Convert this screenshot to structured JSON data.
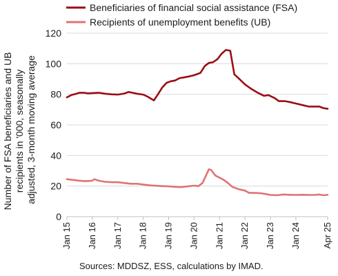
{
  "chart_data": {
    "type": "line",
    "title": "",
    "ylabel_lines": [
      "Number of FSA beneficiaries and UB",
      "recipients in '000, seasonally",
      "adjusted, 3-month moving average"
    ],
    "xlabel": "",
    "ylim": [
      0,
      120
    ],
    "y_ticks": [
      0,
      20,
      40,
      60,
      80,
      100,
      120
    ],
    "x_ticks": [
      {
        "label": "Jan 15",
        "t": 2015.0
      },
      {
        "label": "Jan 16",
        "t": 2016.0
      },
      {
        "label": "Jan 17",
        "t": 2017.0
      },
      {
        "label": "Jan 18",
        "t": 2018.0
      },
      {
        "label": "Jan 19",
        "t": 2019.0
      },
      {
        "label": "Jan 20",
        "t": 2020.0
      },
      {
        "label": "Jan 21",
        "t": 2021.0
      },
      {
        "label": "Jan 22",
        "t": 2022.0
      },
      {
        "label": "Jan 23",
        "t": 2023.0
      },
      {
        "label": "Jan 24",
        "t": 2024.0
      },
      {
        "label": "Apr 25",
        "t": 2025.25
      }
    ],
    "xlim": [
      2015.0,
      2025.25
    ],
    "grid": "horizontal",
    "legend_position": "top",
    "source": "Sources: MDDSZ, ESS, calculations by IMAD.",
    "series": [
      {
        "name": "Beneficiaries of financial social assistance (FSA)",
        "color": "#9b0d14",
        "points": [
          [
            2015.0,
            78
          ],
          [
            2015.17,
            79.5
          ],
          [
            2015.33,
            80.2
          ],
          [
            2015.5,
            81
          ],
          [
            2015.67,
            81
          ],
          [
            2015.83,
            80.6
          ],
          [
            2016.0,
            80.8
          ],
          [
            2016.25,
            81
          ],
          [
            2016.5,
            80.4
          ],
          [
            2016.75,
            80
          ],
          [
            2017.0,
            79.8
          ],
          [
            2017.25,
            80.5
          ],
          [
            2017.42,
            81.5
          ],
          [
            2017.58,
            81
          ],
          [
            2017.75,
            80.4
          ],
          [
            2018.0,
            79.8
          ],
          [
            2018.17,
            78.5
          ],
          [
            2018.42,
            76
          ],
          [
            2018.58,
            80
          ],
          [
            2018.75,
            84.5
          ],
          [
            2018.92,
            87.5
          ],
          [
            2019.08,
            88.5
          ],
          [
            2019.25,
            89
          ],
          [
            2019.42,
            90.5
          ],
          [
            2019.58,
            91
          ],
          [
            2019.75,
            91.5
          ],
          [
            2020.0,
            92.5
          ],
          [
            2020.25,
            94
          ],
          [
            2020.42,
            98.5
          ],
          [
            2020.58,
            100.5
          ],
          [
            2020.75,
            101
          ],
          [
            2020.92,
            103
          ],
          [
            2021.08,
            106.5
          ],
          [
            2021.25,
            109
          ],
          [
            2021.42,
            108.5
          ],
          [
            2021.58,
            93
          ],
          [
            2021.75,
            90.5
          ],
          [
            2022.0,
            86.5
          ],
          [
            2022.25,
            83.5
          ],
          [
            2022.5,
            81
          ],
          [
            2022.75,
            79
          ],
          [
            2022.92,
            79.5
          ],
          [
            2023.17,
            77.5
          ],
          [
            2023.33,
            75.5
          ],
          [
            2023.58,
            75.5
          ],
          [
            2023.75,
            75
          ],
          [
            2024.0,
            74
          ],
          [
            2024.25,
            73
          ],
          [
            2024.5,
            72
          ],
          [
            2024.75,
            72
          ],
          [
            2024.92,
            72
          ],
          [
            2025.08,
            71
          ],
          [
            2025.25,
            70.5
          ]
        ]
      },
      {
        "name": "Recipients of unemployment benefits (UB)",
        "color": "#e07373",
        "points": [
          [
            2015.0,
            24.5
          ],
          [
            2015.25,
            24
          ],
          [
            2015.5,
            23.5
          ],
          [
            2015.75,
            23.2
          ],
          [
            2016.0,
            23.5
          ],
          [
            2016.08,
            24.5
          ],
          [
            2016.25,
            23.5
          ],
          [
            2016.5,
            22.8
          ],
          [
            2016.75,
            22.5
          ],
          [
            2017.0,
            22.5
          ],
          [
            2017.25,
            22
          ],
          [
            2017.5,
            21.5
          ],
          [
            2017.75,
            21.5
          ],
          [
            2018.0,
            21
          ],
          [
            2018.25,
            20.5
          ],
          [
            2018.5,
            20.2
          ],
          [
            2018.75,
            20
          ],
          [
            2019.0,
            19.8
          ],
          [
            2019.25,
            19.5
          ],
          [
            2019.5,
            19.3
          ],
          [
            2019.75,
            19.8
          ],
          [
            2020.0,
            20.3
          ],
          [
            2020.17,
            20
          ],
          [
            2020.33,
            22
          ],
          [
            2020.5,
            28
          ],
          [
            2020.58,
            31
          ],
          [
            2020.67,
            30.5
          ],
          [
            2020.83,
            27
          ],
          [
            2021.0,
            25.5
          ],
          [
            2021.17,
            24
          ],
          [
            2021.33,
            22
          ],
          [
            2021.5,
            19.5
          ],
          [
            2021.75,
            18
          ],
          [
            2022.0,
            17
          ],
          [
            2022.17,
            15.5
          ],
          [
            2022.42,
            15.5
          ],
          [
            2022.67,
            15.2
          ],
          [
            2023.0,
            14.2
          ],
          [
            2023.25,
            14
          ],
          [
            2023.5,
            14.5
          ],
          [
            2023.75,
            14.3
          ],
          [
            2024.0,
            14.2
          ],
          [
            2024.25,
            14.3
          ],
          [
            2024.5,
            14.2
          ],
          [
            2024.75,
            14.2
          ],
          [
            2024.92,
            14.5
          ],
          [
            2025.08,
            14
          ],
          [
            2025.25,
            14.3
          ]
        ]
      }
    ]
  }
}
